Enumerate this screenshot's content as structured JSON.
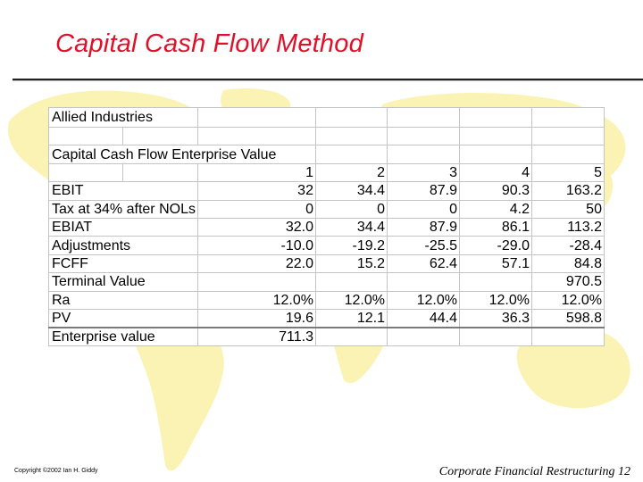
{
  "slide": {
    "title": "Capital Cash Flow Method",
    "copyright": "Copyright ©2002 Ian H. Giddy",
    "footer": "Corporate Financial Restructuring 12",
    "title_color": "#e0102a",
    "map_color": "#fbf3b4"
  },
  "table": {
    "company": "Allied Industries",
    "subtitle": "Capital Cash Flow Enterprise Value",
    "years": [
      "1",
      "2",
      "3",
      "4",
      "5"
    ],
    "rows": [
      {
        "label": "EBIT",
        "values": [
          "32",
          "34.4",
          "87.9",
          "90.3",
          "163.2"
        ]
      },
      {
        "label": "Tax at 34% after NOLs",
        "values": [
          "0",
          "0",
          "0",
          "4.2",
          "50"
        ]
      },
      {
        "label": "EBIAT",
        "values": [
          "32.0",
          "34.4",
          "87.9",
          "86.1",
          "113.2"
        ]
      },
      {
        "label": "Adjustments",
        "values": [
          "-10.0",
          "-19.2",
          "-25.5",
          "-29.0",
          "-28.4"
        ]
      },
      {
        "label": "FCFF",
        "values": [
          "22.0",
          "15.2",
          "62.4",
          "57.1",
          "84.8"
        ]
      },
      {
        "label": "Terminal Value",
        "values": [
          "",
          "",
          "",
          "",
          "970.5"
        ]
      },
      {
        "label": "Ra",
        "values": [
          "12.0%",
          "12.0%",
          "12.0%",
          "12.0%",
          "12.0%"
        ]
      },
      {
        "label": "PV",
        "values": [
          "19.6",
          "12.1",
          "44.4",
          "36.3",
          "598.8"
        ]
      }
    ],
    "enterprise_label": "Enterprise value",
    "enterprise_value": "711.3"
  }
}
